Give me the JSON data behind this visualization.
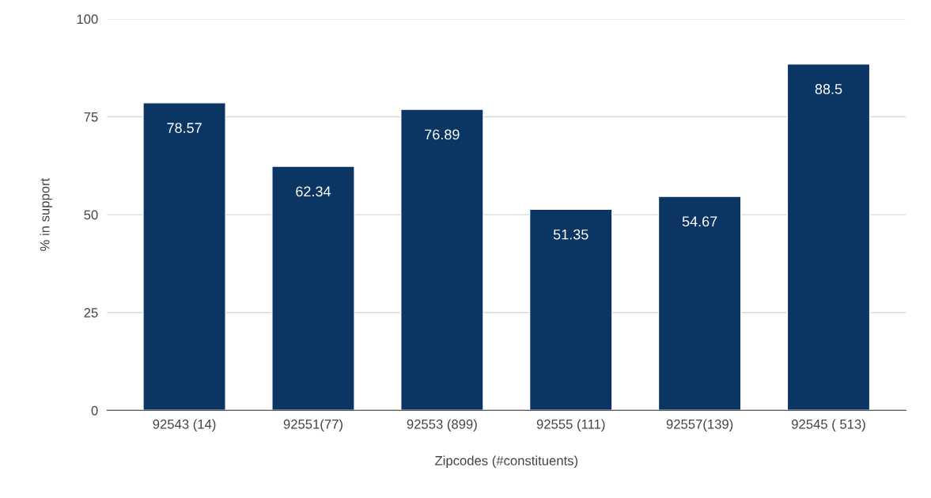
{
  "chart_data": {
    "type": "bar",
    "xlabel": "Zipcodes (#constituents)",
    "ylabel": "% in support",
    "categories": [
      "92543 (14)",
      "92551(77)",
      "92553 (899)",
      "92555 (111)",
      "92557(139)",
      "92545 ( 513)"
    ],
    "values": [
      78.57,
      62.34,
      76.89,
      51.35,
      54.67,
      88.5
    ],
    "color": "#0b3563",
    "ylim": [
      0,
      100
    ],
    "yticks": [
      0,
      25,
      50,
      75,
      100
    ],
    "grid": "y",
    "data_labels": true
  }
}
